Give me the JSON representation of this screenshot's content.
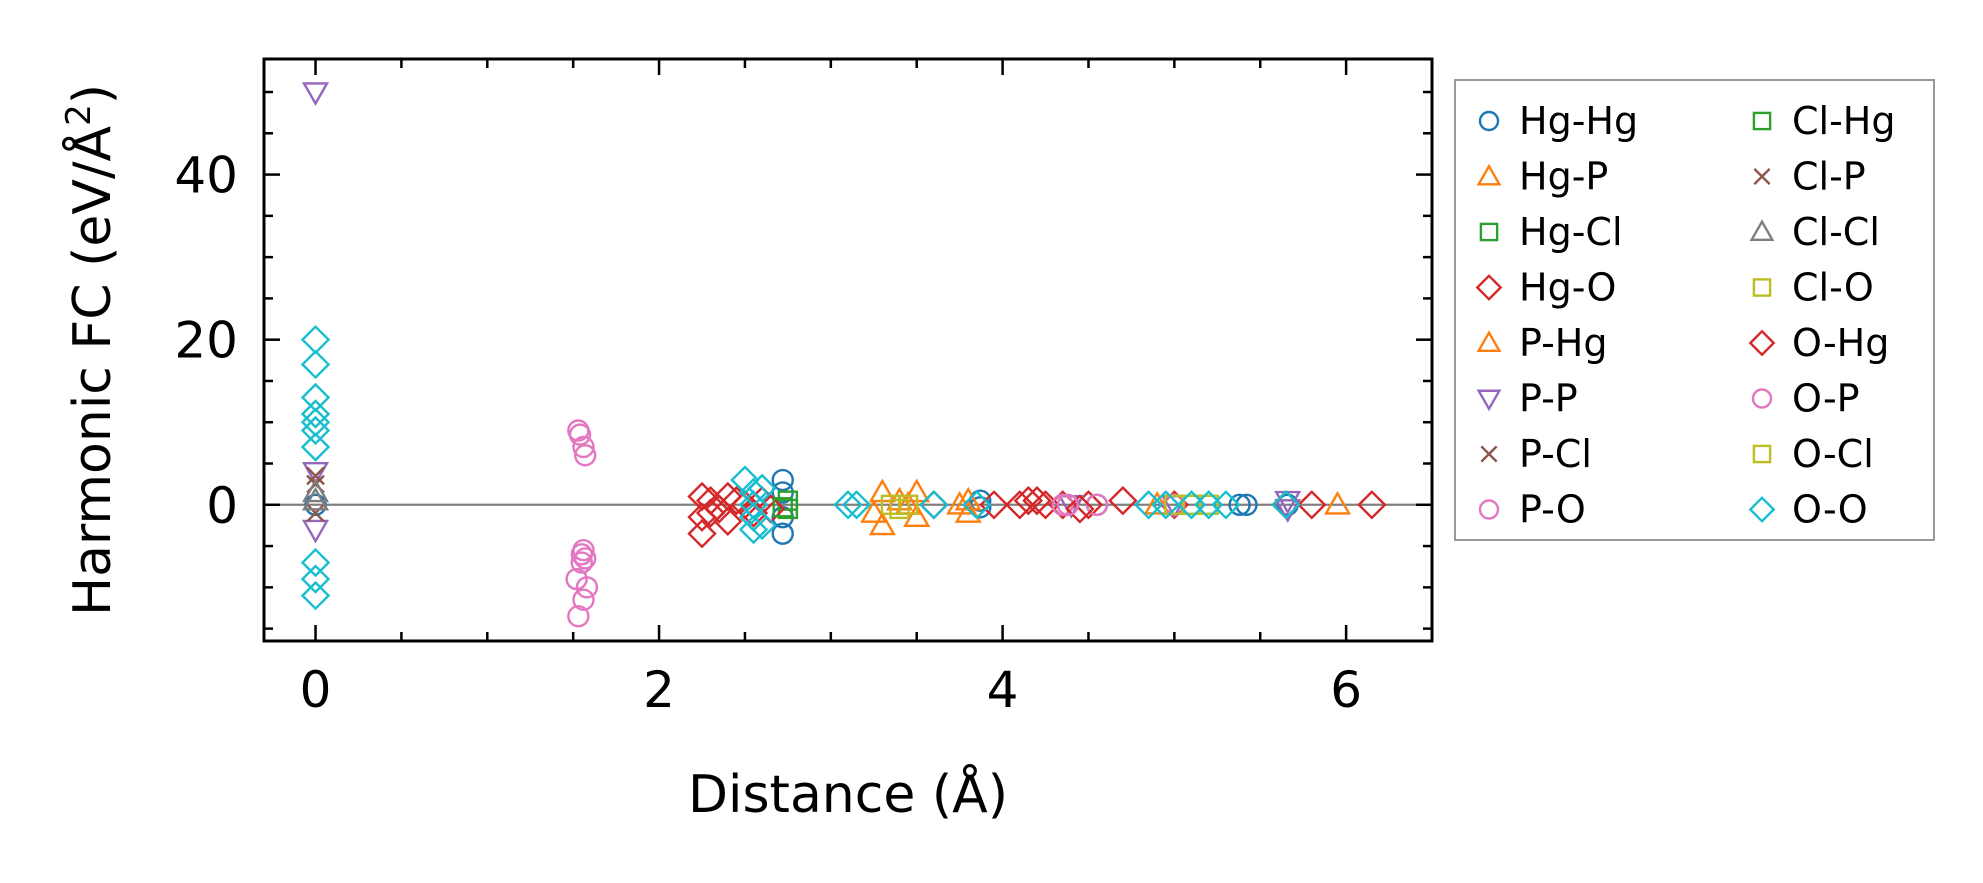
{
  "chart_data": {
    "type": "scatter",
    "title": "",
    "xlabel": "Distance (Å)",
    "ylabel": "Harmonic FC (eV/Å²)",
    "ylabel_base": "Harmonic FC (eV/Å",
    "ylabel_sup": "2",
    "ylabel_close": ")",
    "xlim": [
      -0.3,
      6.5
    ],
    "ylim": [
      -16.5,
      54
    ],
    "xticks": [
      0,
      2,
      4,
      6
    ],
    "yticks": [
      0,
      20,
      40
    ],
    "xtick_labels": [
      "0",
      "2",
      "4",
      "6"
    ],
    "ytick_labels": [
      "0",
      "20",
      "40"
    ],
    "reference_line_y": 0,
    "legend_position": "outside-right",
    "series": [
      {
        "name": "Hg-Hg",
        "marker": "circle",
        "color": "#1f77b4",
        "points": [
          [
            0,
            0
          ],
          [
            2.72,
            3
          ],
          [
            2.72,
            1.5
          ],
          [
            2.72,
            -1.5
          ],
          [
            2.72,
            -3.5
          ],
          [
            3.87,
            0.5
          ],
          [
            3.87,
            -0.3
          ],
          [
            4.55,
            0
          ],
          [
            5.38,
            0
          ],
          [
            5.42,
            0
          ],
          [
            5.66,
            0
          ]
        ]
      },
      {
        "name": "Hg-P",
        "marker": "triangle-up",
        "color": "#ff7f0e",
        "points": [
          [
            3.3,
            1.5
          ],
          [
            3.3,
            -2.5
          ],
          [
            3.4,
            0.5
          ],
          [
            3.5,
            1.5
          ],
          [
            3.5,
            -1.5
          ],
          [
            3.8,
            0.5
          ],
          [
            3.8,
            -1
          ],
          [
            5.95,
            0
          ]
        ]
      },
      {
        "name": "Hg-Cl",
        "marker": "square",
        "color": "#2ca02c",
        "points": [
          [
            2.75,
            0.5
          ],
          [
            2.75,
            -0.5
          ]
        ]
      },
      {
        "name": "Hg-O",
        "marker": "diamond",
        "color": "#d62728",
        "points": [
          [
            2.25,
            1
          ],
          [
            2.25,
            -1.5
          ],
          [
            2.25,
            -3.5
          ],
          [
            2.3,
            0.5
          ],
          [
            2.35,
            -0.5
          ],
          [
            2.4,
            1
          ],
          [
            2.4,
            -2
          ],
          [
            2.5,
            0
          ],
          [
            2.6,
            0.5
          ],
          [
            2.65,
            -0.5
          ],
          [
            3.6,
            0
          ],
          [
            3.95,
            0
          ],
          [
            4.1,
            0
          ],
          [
            4.15,
            0.5
          ],
          [
            4.25,
            0
          ],
          [
            4.35,
            0
          ],
          [
            4.5,
            0
          ],
          [
            4.7,
            0.5
          ],
          [
            5.0,
            0
          ],
          [
            5.8,
            0
          ],
          [
            6.15,
            0
          ]
        ]
      },
      {
        "name": "P-Hg",
        "marker": "triangle-up",
        "color": "#ff7f0e",
        "points": [
          [
            3.25,
            -1
          ],
          [
            3.45,
            0
          ],
          [
            3.75,
            0
          ],
          [
            4.9,
            0
          ]
        ]
      },
      {
        "name": "P-P",
        "marker": "triangle-down",
        "color": "#9467bd",
        "points": [
          [
            0,
            50
          ],
          [
            0,
            4
          ],
          [
            0,
            -3
          ],
          [
            4.4,
            0
          ],
          [
            5.0,
            0
          ],
          [
            5.66,
            0.5
          ],
          [
            5.66,
            -0.5
          ]
        ]
      },
      {
        "name": "P-Cl",
        "marker": "x",
        "color": "#8c564b",
        "points": [
          [
            0,
            3.5
          ],
          [
            0,
            -1
          ]
        ]
      },
      {
        "name": "P-O",
        "marker": "circle",
        "color": "#e377c2",
        "points": [
          [
            1.53,
            9
          ],
          [
            1.56,
            7
          ],
          [
            1.57,
            6
          ],
          [
            1.56,
            -5.5
          ],
          [
            1.57,
            -6.5
          ],
          [
            1.55,
            -6
          ],
          [
            1.52,
            -9
          ],
          [
            1.58,
            -10
          ],
          [
            1.56,
            -11.5
          ],
          [
            1.53,
            -13.5
          ],
          [
            4.35,
            0
          ],
          [
            4.55,
            0
          ],
          [
            5.0,
            0
          ]
        ]
      },
      {
        "name": "Cl-Hg",
        "marker": "square",
        "color": "#2ca02c",
        "points": [
          [
            2.72,
            -0.3
          ]
        ]
      },
      {
        "name": "Cl-P",
        "marker": "x",
        "color": "#8c564b",
        "points": [
          [
            0,
            2.5
          ]
        ]
      },
      {
        "name": "Cl-Cl",
        "marker": "triangle-up",
        "color": "#7f7f7f",
        "points": [
          [
            0,
            1.5
          ],
          [
            0,
            0.5
          ]
        ]
      },
      {
        "name": "Cl-O",
        "marker": "square",
        "color": "#bcbd22",
        "points": [
          [
            3.35,
            0
          ],
          [
            3.45,
            0
          ],
          [
            5.0,
            0
          ],
          [
            5.2,
            0
          ]
        ]
      },
      {
        "name": "O-Hg",
        "marker": "diamond",
        "color": "#d62728",
        "points": [
          [
            2.3,
            -1
          ],
          [
            2.45,
            0.5
          ],
          [
            2.55,
            -1
          ],
          [
            4.2,
            0.5
          ],
          [
            4.45,
            -0.5
          ],
          [
            5.65,
            0
          ]
        ]
      },
      {
        "name": "O-P",
        "marker": "circle",
        "color": "#e377c2",
        "points": [
          [
            1.54,
            8.5
          ],
          [
            1.55,
            -7
          ],
          [
            4.38,
            0
          ]
        ]
      },
      {
        "name": "O-Cl",
        "marker": "square",
        "color": "#bcbd22",
        "points": [
          [
            3.4,
            -0.5
          ],
          [
            5.1,
            0
          ]
        ]
      },
      {
        "name": "O-O",
        "marker": "diamond",
        "color": "#17becf",
        "points": [
          [
            0,
            20
          ],
          [
            0,
            17
          ],
          [
            0,
            13
          ],
          [
            0,
            11
          ],
          [
            0,
            10
          ],
          [
            0,
            9
          ],
          [
            0,
            7
          ],
          [
            0,
            -7
          ],
          [
            0,
            -9
          ],
          [
            0,
            -11
          ],
          [
            2.5,
            3
          ],
          [
            2.55,
            1.5
          ],
          [
            2.55,
            0
          ],
          [
            2.55,
            -1.5
          ],
          [
            2.55,
            -3
          ],
          [
            2.6,
            2
          ],
          [
            2.6,
            -2.5
          ],
          [
            3.1,
            0
          ],
          [
            3.15,
            0
          ],
          [
            3.6,
            0
          ],
          [
            3.85,
            0
          ],
          [
            4.85,
            0
          ],
          [
            4.95,
            0
          ],
          [
            5.1,
            0
          ],
          [
            5.2,
            0
          ],
          [
            5.3,
            0
          ],
          [
            5.65,
            0
          ]
        ]
      }
    ]
  }
}
